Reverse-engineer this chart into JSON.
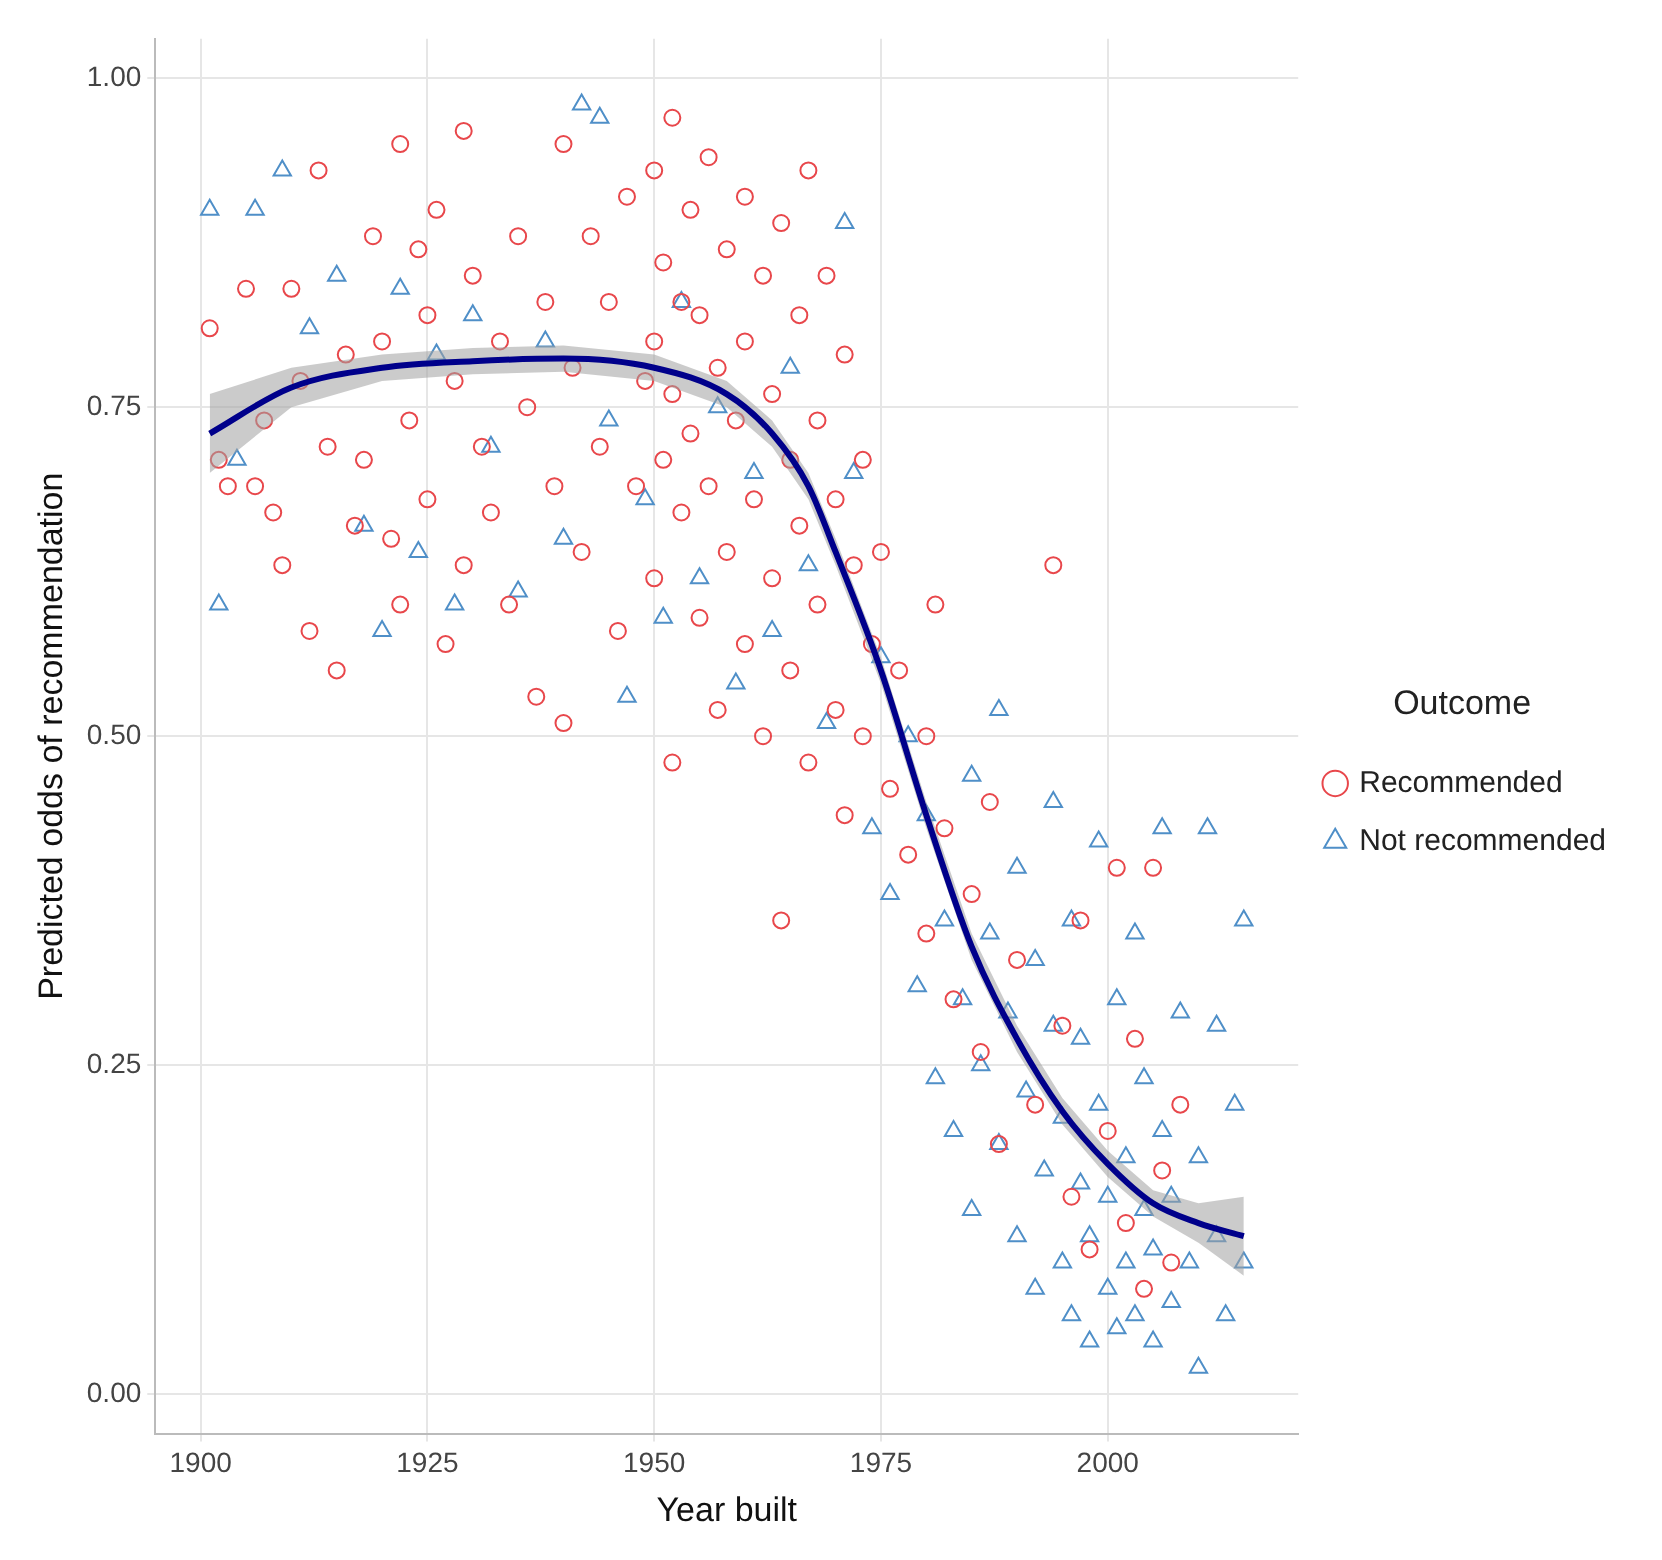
{
  "chart_data": {
    "type": "scatter",
    "xlabel": "Year built",
    "ylabel": "Predicted odds of recommendation",
    "legend_title": "Outcome",
    "legend": "right",
    "grid": true,
    "xlim": [
      1895,
      2021
    ],
    "xticks": [
      1900,
      1925,
      1950,
      1975,
      2000
    ],
    "ylim": [
      -0.03,
      1.03
    ],
    "yticks": [
      {
        "value": 0,
        "label": "0.00"
      },
      {
        "value": 0.25,
        "label": "0.25"
      },
      {
        "value": 0.5,
        "label": "0.50"
      },
      {
        "value": 0.75,
        "label": "0.75"
      },
      {
        "value": 1,
        "label": "1.00"
      }
    ],
    "series": [
      {
        "name": "Recommended",
        "type": "scatter",
        "marker": "circle",
        "color": "#e8474b",
        "x": [
          1901,
          1902,
          1903,
          1905,
          1906,
          1907,
          1908,
          1909,
          1910,
          1911,
          1912,
          1913,
          1914,
          1915,
          1916,
          1917,
          1918,
          1919,
          1920,
          1921,
          1922,
          1922,
          1923,
          1924,
          1925,
          1925,
          1926,
          1927,
          1928,
          1929,
          1929,
          1930,
          1931,
          1932,
          1933,
          1934,
          1935,
          1936,
          1937,
          1938,
          1939,
          1940,
          1940,
          1941,
          1942,
          1943,
          1944,
          1945,
          1946,
          1947,
          1948,
          1949,
          1950,
          1950,
          1950,
          1951,
          1951,
          1952,
          1952,
          1952,
          1953,
          1953,
          1954,
          1954,
          1955,
          1955,
          1956,
          1956,
          1957,
          1957,
          1958,
          1958,
          1959,
          1960,
          1960,
          1960,
          1961,
          1962,
          1962,
          1963,
          1963,
          1964,
          1964,
          1965,
          1965,
          1966,
          1966,
          1967,
          1967,
          1968,
          1968,
          1969,
          1970,
          1970,
          1971,
          1971,
          1972,
          1973,
          1973,
          1974,
          1975,
          1976,
          1977,
          1978,
          1980,
          1980,
          1981,
          1982,
          1983,
          1985,
          1986,
          1987,
          1988,
          1990,
          1992,
          1994,
          1995,
          1996,
          1997,
          1998,
          2000,
          2001,
          2002,
          2003,
          2004,
          2005,
          2006,
          2007,
          2008
        ],
        "values": [
          0.81,
          0.71,
          0.69,
          0.84,
          0.69,
          0.74,
          0.67,
          0.63,
          0.84,
          0.77,
          0.58,
          0.93,
          0.72,
          0.55,
          0.79,
          0.66,
          0.71,
          0.88,
          0.8,
          0.65,
          0.95,
          0.6,
          0.74,
          0.87,
          0.82,
          0.68,
          0.9,
          0.57,
          0.77,
          0.96,
          0.63,
          0.85,
          0.72,
          0.67,
          0.8,
          0.6,
          0.88,
          0.75,
          0.53,
          0.83,
          0.69,
          0.95,
          0.51,
          0.78,
          0.64,
          0.88,
          0.72,
          0.83,
          0.58,
          0.91,
          0.69,
          0.77,
          0.93,
          0.8,
          0.62,
          0.86,
          0.71,
          0.97,
          0.48,
          0.76,
          0.83,
          0.67,
          0.9,
          0.73,
          0.59,
          0.82,
          0.94,
          0.69,
          0.78,
          0.52,
          0.87,
          0.64,
          0.74,
          0.91,
          0.57,
          0.8,
          0.68,
          0.85,
          0.5,
          0.76,
          0.62,
          0.36,
          0.89,
          0.71,
          0.55,
          0.82,
          0.66,
          0.93,
          0.48,
          0.74,
          0.6,
          0.85,
          0.68,
          0.52,
          0.79,
          0.44,
          0.63,
          0.71,
          0.5,
          0.57,
          0.64,
          0.46,
          0.55,
          0.41,
          0.5,
          0.35,
          0.6,
          0.43,
          0.3,
          0.38,
          0.26,
          0.45,
          0.19,
          0.33,
          0.22,
          0.63,
          0.28,
          0.15,
          0.36,
          0.11,
          0.2,
          0.4,
          0.13,
          0.27,
          0.08,
          0.4,
          0.17,
          0.1,
          0.22
        ]
      },
      {
        "name": "Not recommended",
        "type": "scatter",
        "marker": "triangle",
        "color": "#4f8fc8",
        "x": [
          1901,
          1902,
          1904,
          1906,
          1909,
          1912,
          1915,
          1918,
          1920,
          1922,
          1924,
          1926,
          1928,
          1930,
          1932,
          1935,
          1938,
          1940,
          1942,
          1944,
          1945,
          1947,
          1949,
          1951,
          1953,
          1955,
          1957,
          1959,
          1961,
          1963,
          1965,
          1967,
          1969,
          1971,
          1972,
          1974,
          1975,
          1976,
          1978,
          1979,
          1980,
          1981,
          1982,
          1983,
          1984,
          1985,
          1985,
          1986,
          1987,
          1988,
          1988,
          1989,
          1990,
          1990,
          1991,
          1992,
          1992,
          1993,
          1994,
          1994,
          1995,
          1995,
          1996,
          1996,
          1997,
          1997,
          1998,
          1998,
          1999,
          1999,
          2000,
          2000,
          2001,
          2001,
          2002,
          2002,
          2003,
          2003,
          2004,
          2004,
          2005,
          2005,
          2006,
          2006,
          2007,
          2007,
          2008,
          2009,
          2010,
          2010,
          2011,
          2012,
          2012,
          2013,
          2014,
          2015,
          2015
        ],
        "values": [
          0.9,
          0.6,
          0.71,
          0.9,
          0.93,
          0.81,
          0.85,
          0.66,
          0.58,
          0.84,
          0.64,
          0.79,
          0.6,
          0.82,
          0.72,
          0.61,
          0.8,
          0.65,
          0.98,
          0.97,
          0.74,
          0.53,
          0.68,
          0.59,
          0.83,
          0.62,
          0.75,
          0.54,
          0.7,
          0.58,
          0.78,
          0.63,
          0.51,
          0.89,
          0.7,
          0.43,
          0.56,
          0.38,
          0.5,
          0.31,
          0.44,
          0.24,
          0.36,
          0.2,
          0.3,
          0.14,
          0.47,
          0.25,
          0.35,
          0.19,
          0.52,
          0.29,
          0.12,
          0.4,
          0.23,
          0.33,
          0.08,
          0.17,
          0.28,
          0.45,
          0.1,
          0.21,
          0.36,
          0.06,
          0.16,
          0.27,
          0.04,
          0.12,
          0.22,
          0.42,
          0.08,
          0.15,
          0.3,
          0.05,
          0.18,
          0.1,
          0.35,
          0.06,
          0.14,
          0.24,
          0.04,
          0.11,
          0.2,
          0.43,
          0.07,
          0.15,
          0.29,
          0.1,
          0.02,
          0.18,
          0.43,
          0.12,
          0.28,
          0.06,
          0.22,
          0.36,
          0.1
        ]
      },
      {
        "type": "line",
        "marker": "none",
        "line_style": "solid",
        "color": "#00008b",
        "x": [
          1901,
          1910,
          1920,
          1930,
          1940,
          1950,
          1958,
          1963,
          1967,
          1970,
          1975,
          1980,
          1985,
          1990,
          1995,
          2000,
          2005,
          2010,
          2015
        ],
        "values": [
          0.73,
          0.765,
          0.78,
          0.785,
          0.787,
          0.78,
          0.76,
          0.73,
          0.69,
          0.64,
          0.55,
          0.44,
          0.34,
          0.27,
          0.215,
          0.175,
          0.145,
          0.13,
          0.12
        ],
        "lower": [
          0.7,
          0.75,
          0.77,
          0.775,
          0.777,
          0.77,
          0.75,
          0.72,
          0.68,
          0.63,
          0.54,
          0.43,
          0.33,
          0.26,
          0.205,
          0.165,
          0.135,
          0.115,
          0.09
        ],
        "upper": [
          0.76,
          0.78,
          0.79,
          0.795,
          0.797,
          0.79,
          0.77,
          0.74,
          0.7,
          0.65,
          0.56,
          0.45,
          0.35,
          0.28,
          0.225,
          0.185,
          0.155,
          0.145,
          0.15
        ]
      }
    ]
  }
}
